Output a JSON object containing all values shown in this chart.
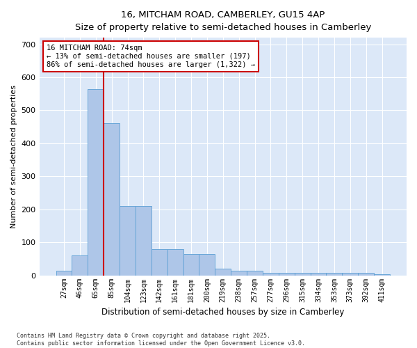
{
  "title_line1": "16, MITCHAM ROAD, CAMBERLEY, GU15 4AP",
  "title_line2": "Size of property relative to semi-detached houses in Camberley",
  "xlabel": "Distribution of semi-detached houses by size in Camberley",
  "ylabel": "Number of semi-detached properties",
  "footnote": "Contains HM Land Registry data © Crown copyright and database right 2025.\nContains public sector information licensed under the Open Government Licence v3.0.",
  "bar_labels": [
    "27sqm",
    "46sqm",
    "65sqm",
    "85sqm",
    "104sqm",
    "123sqm",
    "142sqm",
    "161sqm",
    "181sqm",
    "200sqm",
    "219sqm",
    "238sqm",
    "257sqm",
    "277sqm",
    "296sqm",
    "315sqm",
    "334sqm",
    "353sqm",
    "373sqm",
    "392sqm",
    "411sqm"
  ],
  "bar_values": [
    15,
    60,
    565,
    460,
    210,
    210,
    80,
    80,
    65,
    65,
    20,
    15,
    15,
    8,
    8,
    7,
    7,
    8,
    7,
    7,
    3
  ],
  "bar_color": "#aec6e8",
  "bar_edge_color": "#5a9fd4",
  "background_color": "#dce8f8",
  "grid_color": "#ffffff",
  "vline_color": "#cc0000",
  "annotation_text": "16 MITCHAM ROAD: 74sqm\n← 13% of semi-detached houses are smaller (197)\n86% of semi-detached houses are larger (1,322) →",
  "annotation_box_color": "#ffffff",
  "annotation_box_edge": "#cc0000",
  "ylim": [
    0,
    720
  ],
  "yticks": [
    0,
    100,
    200,
    300,
    400,
    500,
    600,
    700
  ]
}
